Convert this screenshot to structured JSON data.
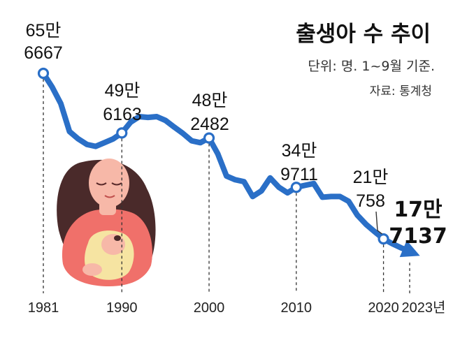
{
  "chart_data": {
    "type": "line",
    "title": "출생아 수 추이",
    "subtitle": "단위: 명. 1~9월 기준.",
    "source": "자료: 통계청",
    "x_ticks": [
      {
        "year": 1981,
        "label": "1981"
      },
      {
        "year": 1990,
        "label": "1990"
      },
      {
        "year": 2000,
        "label": "2000"
      },
      {
        "year": 2010,
        "label": "2010"
      },
      {
        "year": 2020,
        "label": "2020"
      },
      {
        "year": 2023,
        "label": "2023년"
      }
    ],
    "xlim": [
      1981,
      2023
    ],
    "x": [
      1981,
      1982,
      1983,
      1984,
      1985,
      1986,
      1987,
      1988,
      1989,
      1990,
      1991,
      1992,
      1993,
      1994,
      1995,
      1996,
      1997,
      1998,
      1999,
      2000,
      2001,
      2002,
      2003,
      2004,
      2005,
      2006,
      2007,
      2008,
      2009,
      2010,
      2011,
      2012,
      2013,
      2014,
      2015,
      2016,
      2017,
      2018,
      2019,
      2020,
      2021,
      2022,
      2023
    ],
    "values": [
      656667,
      620000,
      575000,
      500000,
      480000,
      465000,
      460000,
      470000,
      480000,
      496163,
      525000,
      540000,
      538000,
      540000,
      530000,
      512000,
      495000,
      475000,
      470000,
      482482,
      440000,
      380000,
      370000,
      365000,
      325000,
      340000,
      375000,
      350000,
      335000,
      349711,
      355000,
      360000,
      323000,
      325000,
      325000,
      312000,
      275000,
      250000,
      230000,
      210758,
      198000,
      187000,
      177137
    ],
    "labeled_points": [
      {
        "year": 1981,
        "value": 656667,
        "line1": "65만",
        "line2": "6667"
      },
      {
        "year": 1990,
        "value": 496163,
        "line1": "49만",
        "line2": "6163"
      },
      {
        "year": 2000,
        "value": 482482,
        "line1": "48만",
        "line2": "2482"
      },
      {
        "year": 2010,
        "value": 349711,
        "line1": "34만",
        "line2": "9711"
      },
      {
        "year": 2020,
        "value": 210758,
        "line1": "21만",
        "line2": "758"
      },
      {
        "year": 2023,
        "value": 177137,
        "line1": "17만",
        "line2": "7137"
      }
    ],
    "series_color": "#2a6fc7",
    "grid": false,
    "legend": "none"
  },
  "illustration": {
    "name": "mother-holding-baby",
    "colors": {
      "hair": "#4a2a2a",
      "skin": "#f7b8a8",
      "shirt": "#f0706a",
      "blanket": "#f6e4a2"
    }
  }
}
